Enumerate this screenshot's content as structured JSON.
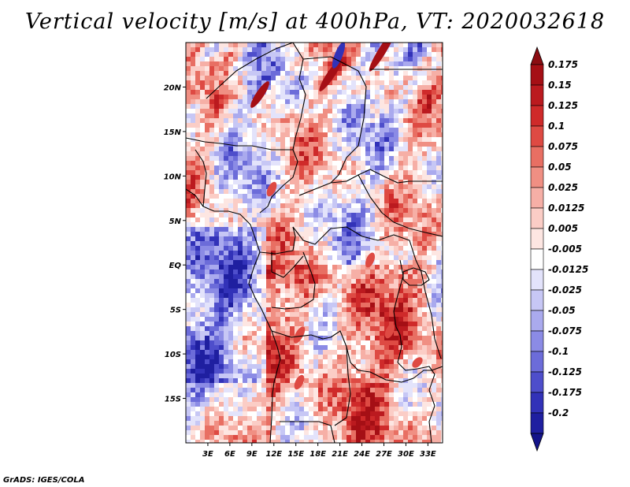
{
  "title": "Vertical velocity [m/s] at 400hPa, VT: 2020032618",
  "credit": "GrADS: IGES/COLA",
  "map": {
    "lat_range": [
      -20,
      25
    ],
    "lon_range": [
      0,
      35
    ],
    "lat_ticks": [
      {
        "value": 20,
        "label": "20N"
      },
      {
        "value": 15,
        "label": "15N"
      },
      {
        "value": 10,
        "label": "10N"
      },
      {
        "value": 5,
        "label": "5N"
      },
      {
        "value": 0,
        "label": "EQ"
      },
      {
        "value": -5,
        "label": "5S"
      },
      {
        "value": -10,
        "label": "10S"
      },
      {
        "value": -15,
        "label": "15S"
      }
    ],
    "lon_ticks": [
      {
        "value": 3,
        "label": "3E"
      },
      {
        "value": 6,
        "label": "6E"
      },
      {
        "value": 9,
        "label": "9E"
      },
      {
        "value": 12,
        "label": "12E"
      },
      {
        "value": 15,
        "label": "15E"
      },
      {
        "value": 18,
        "label": "18E"
      },
      {
        "value": 21,
        "label": "21E"
      },
      {
        "value": 24,
        "label": "24E"
      },
      {
        "value": 27,
        "label": "27E"
      },
      {
        "value": 30,
        "label": "30E"
      },
      {
        "value": 33,
        "label": "33E"
      }
    ]
  },
  "colorbar": {
    "levels": [
      {
        "label": "0.175",
        "color": "#a50f15"
      },
      {
        "label": "0.15",
        "color": "#bb1a1f"
      },
      {
        "label": "0.125",
        "color": "#cf2a2a"
      },
      {
        "label": "0.1",
        "color": "#de4a43"
      },
      {
        "label": "0.075",
        "color": "#e86f63"
      },
      {
        "label": "0.05",
        "color": "#f08f83"
      },
      {
        "label": "0.025",
        "color": "#f6afa6"
      },
      {
        "label": "0.0125",
        "color": "#fbcdc6"
      },
      {
        "label": "0.005",
        "color": "#fde6e2"
      },
      {
        "label": "-0.005",
        "color": "#ffffff"
      },
      {
        "label": "-0.0125",
        "color": "#e3e3fb"
      },
      {
        "label": "-0.025",
        "color": "#c7c7f5"
      },
      {
        "label": "-0.05",
        "color": "#aaaaee"
      },
      {
        "label": "-0.075",
        "color": "#8b8be5"
      },
      {
        "label": "-0.1",
        "color": "#6c6cd9"
      },
      {
        "label": "-0.125",
        "color": "#4e4ecb"
      },
      {
        "label": "-0.175",
        "color": "#3232b8"
      },
      {
        "label": "-0.2",
        "color": "#1f1fa0"
      }
    ],
    "top_arrow_color": "#8b0d12",
    "bottom_arrow_color": "#14148a"
  }
}
